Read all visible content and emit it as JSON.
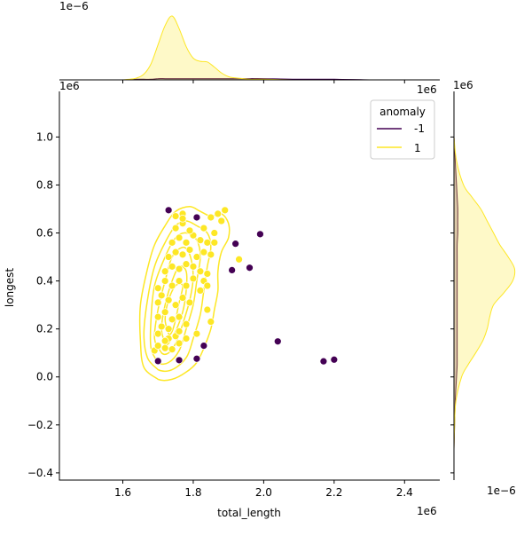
{
  "chart_data": {
    "type": "scatter",
    "title": "",
    "xlabel": "total_length",
    "ylabel": "longest",
    "x_offset_text": "1e6",
    "y_offset_text": "1e6",
    "top_marginal_offset_text": "1e−6",
    "right_marginal_offset_text": "1e−6",
    "xlim": [
      1.42,
      2.5
    ],
    "ylim": [
      -0.43,
      1.19
    ],
    "xticks": [
      1.6,
      1.8,
      2.0,
      2.2,
      2.4
    ],
    "xtick_labels": [
      "1.6",
      "1.8",
      "2.0",
      "2.2",
      "2.4"
    ],
    "yticks": [
      -0.4,
      -0.2,
      0.0,
      0.2,
      0.4,
      0.6,
      0.8,
      1.0
    ],
    "ytick_labels": [
      "−0.4",
      "−0.2",
      "0.0",
      "0.2",
      "0.4",
      "0.6",
      "0.8",
      "1.0"
    ],
    "grid": false,
    "legend": {
      "title": "anomaly",
      "placement": "top-right",
      "entries": [
        {
          "label": "-1",
          "color": "#440154"
        },
        {
          "label": "1",
          "color": "#fde725"
        }
      ]
    },
    "series": [
      {
        "name": "-1",
        "color": "#440154",
        "points": [
          [
            1.73,
            0.695
          ],
          [
            1.81,
            0.665
          ],
          [
            1.99,
            0.595
          ],
          [
            1.92,
            0.555
          ],
          [
            1.96,
            0.455
          ],
          [
            1.91,
            0.445
          ],
          [
            2.04,
            0.148
          ],
          [
            1.83,
            0.13
          ],
          [
            1.81,
            0.076
          ],
          [
            1.76,
            0.07
          ],
          [
            1.7,
            0.066
          ],
          [
            2.17,
            0.065
          ],
          [
            2.2,
            0.072
          ]
        ]
      },
      {
        "name": "1",
        "color": "#fde725",
        "points": [
          [
            1.69,
            0.11
          ],
          [
            1.7,
            0.13
          ],
          [
            1.72,
            0.12
          ],
          [
            1.73,
            0.16
          ],
          [
            1.74,
            0.115
          ],
          [
            1.7,
            0.18
          ],
          [
            1.71,
            0.21
          ],
          [
            1.73,
            0.2
          ],
          [
            1.75,
            0.17
          ],
          [
            1.76,
            0.19
          ],
          [
            1.7,
            0.25
          ],
          [
            1.72,
            0.27
          ],
          [
            1.74,
            0.24
          ],
          [
            1.76,
            0.25
          ],
          [
            1.78,
            0.22
          ],
          [
            1.7,
            0.31
          ],
          [
            1.71,
            0.34
          ],
          [
            1.73,
            0.32
          ],
          [
            1.75,
            0.3
          ],
          [
            1.77,
            0.33
          ],
          [
            1.79,
            0.31
          ],
          [
            1.7,
            0.37
          ],
          [
            1.72,
            0.4
          ],
          [
            1.74,
            0.38
          ],
          [
            1.76,
            0.4
          ],
          [
            1.78,
            0.38
          ],
          [
            1.8,
            0.41
          ],
          [
            1.72,
            0.44
          ],
          [
            1.74,
            0.46
          ],
          [
            1.76,
            0.45
          ],
          [
            1.78,
            0.47
          ],
          [
            1.8,
            0.46
          ],
          [
            1.82,
            0.44
          ],
          [
            1.73,
            0.5
          ],
          [
            1.75,
            0.52
          ],
          [
            1.77,
            0.51
          ],
          [
            1.79,
            0.53
          ],
          [
            1.81,
            0.5
          ],
          [
            1.83,
            0.52
          ],
          [
            1.74,
            0.56
          ],
          [
            1.76,
            0.58
          ],
          [
            1.78,
            0.56
          ],
          [
            1.8,
            0.59
          ],
          [
            1.82,
            0.57
          ],
          [
            1.84,
            0.56
          ],
          [
            1.75,
            0.62
          ],
          [
            1.77,
            0.64
          ],
          [
            1.79,
            0.61
          ],
          [
            1.83,
            0.62
          ],
          [
            1.86,
            0.6
          ],
          [
            1.75,
            0.67
          ],
          [
            1.77,
            0.68
          ],
          [
            1.85,
            0.665
          ],
          [
            1.87,
            0.68
          ],
          [
            1.89,
            0.695
          ],
          [
            1.88,
            0.65
          ],
          [
            1.84,
            0.43
          ],
          [
            1.85,
            0.51
          ],
          [
            1.86,
            0.56
          ],
          [
            1.83,
            0.4
          ],
          [
            1.84,
            0.38
          ],
          [
            1.77,
            0.66
          ],
          [
            1.93,
            0.49
          ],
          [
            1.84,
            0.28
          ],
          [
            1.85,
            0.23
          ],
          [
            1.82,
            0.36
          ],
          [
            1.72,
            0.15
          ],
          [
            1.76,
            0.14
          ],
          [
            1.78,
            0.16
          ],
          [
            1.81,
            0.18
          ]
        ]
      }
    ],
    "kde_contours": [
      [
        [
          1.7,
          -0.01
        ],
        [
          1.66,
          0.04
        ],
        [
          1.65,
          0.15
        ],
        [
          1.65,
          0.3
        ],
        [
          1.67,
          0.45
        ],
        [
          1.69,
          0.55
        ],
        [
          1.72,
          0.63
        ],
        [
          1.75,
          0.69
        ],
        [
          1.79,
          0.71
        ],
        [
          1.82,
          0.69
        ],
        [
          1.85,
          0.67
        ],
        [
          1.88,
          0.68
        ],
        [
          1.9,
          0.64
        ],
        [
          1.9,
          0.58
        ],
        [
          1.88,
          0.52
        ],
        [
          1.87,
          0.44
        ],
        [
          1.87,
          0.36
        ],
        [
          1.86,
          0.28
        ],
        [
          1.85,
          0.2
        ],
        [
          1.83,
          0.12
        ],
        [
          1.81,
          0.06
        ],
        [
          1.78,
          0.02
        ],
        [
          1.74,
          -0.01
        ]
      ],
      [
        [
          1.7,
          0.03
        ],
        [
          1.67,
          0.08
        ],
        [
          1.66,
          0.18
        ],
        [
          1.67,
          0.32
        ],
        [
          1.69,
          0.46
        ],
        [
          1.72,
          0.56
        ],
        [
          1.75,
          0.63
        ],
        [
          1.78,
          0.65
        ],
        [
          1.81,
          0.63
        ],
        [
          1.84,
          0.6
        ],
        [
          1.85,
          0.54
        ],
        [
          1.84,
          0.46
        ],
        [
          1.83,
          0.36
        ],
        [
          1.82,
          0.26
        ],
        [
          1.8,
          0.16
        ],
        [
          1.78,
          0.08
        ],
        [
          1.74,
          0.03
        ]
      ],
      [
        [
          1.7,
          0.06
        ],
        [
          1.68,
          0.12
        ],
        [
          1.68,
          0.24
        ],
        [
          1.69,
          0.38
        ],
        [
          1.72,
          0.5
        ],
        [
          1.75,
          0.58
        ],
        [
          1.78,
          0.6
        ],
        [
          1.81,
          0.57
        ],
        [
          1.82,
          0.5
        ],
        [
          1.81,
          0.4
        ],
        [
          1.8,
          0.3
        ],
        [
          1.78,
          0.2
        ],
        [
          1.76,
          0.11
        ],
        [
          1.73,
          0.06
        ]
      ],
      [
        [
          1.71,
          0.1
        ],
        [
          1.69,
          0.16
        ],
        [
          1.7,
          0.28
        ],
        [
          1.72,
          0.4
        ],
        [
          1.74,
          0.5
        ],
        [
          1.77,
          0.54
        ],
        [
          1.79,
          0.51
        ],
        [
          1.8,
          0.42
        ],
        [
          1.79,
          0.32
        ],
        [
          1.77,
          0.22
        ],
        [
          1.75,
          0.14
        ],
        [
          1.73,
          0.1
        ]
      ],
      [
        [
          1.72,
          0.14
        ],
        [
          1.71,
          0.2
        ],
        [
          1.72,
          0.3
        ],
        [
          1.74,
          0.4
        ],
        [
          1.76,
          0.46
        ],
        [
          1.78,
          0.44
        ],
        [
          1.78,
          0.36
        ],
        [
          1.77,
          0.27
        ],
        [
          1.75,
          0.19
        ],
        [
          1.73,
          0.14
        ]
      ],
      [
        [
          1.73,
          0.18
        ],
        [
          1.72,
          0.24
        ],
        [
          1.73,
          0.32
        ],
        [
          1.75,
          0.38
        ],
        [
          1.77,
          0.38
        ],
        [
          1.76,
          0.31
        ],
        [
          1.75,
          0.24
        ],
        [
          1.74,
          0.19
        ]
      ]
    ],
    "marginal_x": {
      "x": [
        1.6,
        1.62,
        1.64,
        1.66,
        1.68,
        1.7,
        1.72,
        1.74,
        1.76,
        1.78,
        1.8,
        1.82,
        1.84,
        1.86,
        1.88,
        1.9,
        1.92,
        1.94,
        1.96,
        2.0,
        2.1,
        2.2,
        2.3
      ],
      "density_1": [
        0.0,
        0.01,
        0.03,
        0.09,
        0.25,
        0.55,
        0.85,
        1.0,
        0.8,
        0.52,
        0.34,
        0.29,
        0.28,
        0.2,
        0.11,
        0.05,
        0.03,
        0.02,
        0.01,
        0.01,
        0.0,
        0.0,
        0.0
      ],
      "density_minus1": [
        0.0,
        0.0,
        0.01,
        0.01,
        0.01,
        0.02,
        0.02,
        0.02,
        0.02,
        0.02,
        0.02,
        0.02,
        0.02,
        0.02,
        0.02,
        0.02,
        0.02,
        0.02,
        0.02,
        0.02,
        0.01,
        0.01,
        0.0
      ]
    },
    "marginal_y": {
      "y": [
        -0.3,
        -0.2,
        -0.1,
        0.0,
        0.05,
        0.1,
        0.15,
        0.2,
        0.25,
        0.3,
        0.35,
        0.4,
        0.45,
        0.5,
        0.55,
        0.6,
        0.65,
        0.7,
        0.75,
        0.8,
        0.9,
        1.0
      ],
      "density_1": [
        0.0,
        0.01,
        0.03,
        0.12,
        0.22,
        0.34,
        0.45,
        0.52,
        0.56,
        0.62,
        0.78,
        0.92,
        0.95,
        0.85,
        0.72,
        0.62,
        0.52,
        0.42,
        0.28,
        0.15,
        0.04,
        0.0
      ],
      "density_minus1": [
        0.0,
        0.01,
        0.02,
        0.04,
        0.05,
        0.05,
        0.05,
        0.05,
        0.05,
        0.05,
        0.05,
        0.05,
        0.05,
        0.05,
        0.05,
        0.06,
        0.06,
        0.06,
        0.05,
        0.04,
        0.02,
        0.0
      ]
    }
  }
}
